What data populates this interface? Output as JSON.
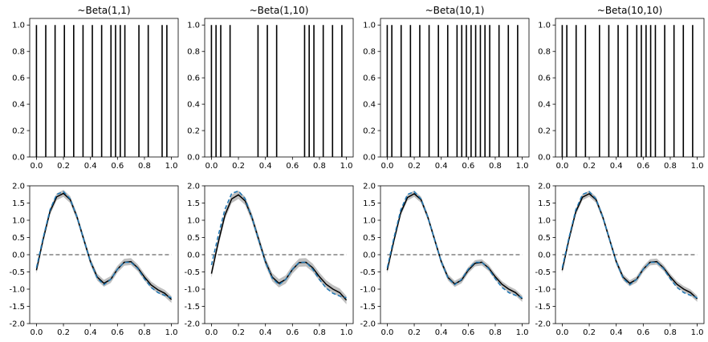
{
  "chart_data": [
    {
      "type": "bar",
      "title": "~Beta(1,1)",
      "x": [
        0.0,
        0.069,
        0.138,
        0.207,
        0.276,
        0.345,
        0.414,
        0.483,
        0.552,
        0.586,
        0.621,
        0.655,
        0.759,
        0.828,
        0.931,
        0.966
      ],
      "values": [
        1,
        1,
        1,
        1,
        1,
        1,
        1,
        1,
        1,
        1,
        1,
        1,
        1,
        1,
        1,
        1
      ],
      "xlim": [
        -0.05,
        1.05
      ],
      "ylim": [
        0,
        1.05
      ],
      "xticks": [
        0.0,
        0.2,
        0.4,
        0.6,
        0.8,
        1.0
      ],
      "yticks": [
        0.0,
        0.2,
        0.4,
        0.6,
        0.8,
        1.0
      ]
    },
    {
      "type": "bar",
      "title": "~Beta(1,10)",
      "x": [
        0.0,
        0.034,
        0.069,
        0.138,
        0.345,
        0.414,
        0.483,
        0.69,
        0.724,
        0.759,
        0.828,
        0.897,
        0.966
      ],
      "values": [
        1,
        1,
        1,
        1,
        1,
        1,
        1,
        1,
        1,
        1,
        1,
        1,
        1
      ],
      "xlim": [
        -0.05,
        1.05
      ],
      "ylim": [
        0,
        1.05
      ],
      "xticks": [
        0.0,
        0.2,
        0.4,
        0.6,
        0.8,
        1.0
      ],
      "yticks": [
        0.0,
        0.2,
        0.4,
        0.6,
        0.8,
        1.0
      ]
    },
    {
      "type": "bar",
      "title": "~Beta(10,1)",
      "x": [
        0.0,
        0.034,
        0.103,
        0.172,
        0.241,
        0.31,
        0.379,
        0.448,
        0.517,
        0.552,
        0.586,
        0.621,
        0.655,
        0.69,
        0.724,
        0.759,
        0.828,
        0.897,
        0.966
      ],
      "values": [
        1,
        1,
        1,
        1,
        1,
        1,
        1,
        1,
        1,
        1,
        1,
        1,
        1,
        1,
        1,
        1,
        1,
        1,
        1
      ],
      "xlim": [
        -0.05,
        1.05
      ],
      "ylim": [
        0,
        1.05
      ],
      "xticks": [
        0.0,
        0.2,
        0.4,
        0.6,
        0.8,
        1.0
      ],
      "yticks": [
        0.0,
        0.2,
        0.4,
        0.6,
        0.8,
        1.0
      ]
    },
    {
      "type": "bar",
      "title": "~Beta(10,10)",
      "x": [
        0.0,
        0.034,
        0.103,
        0.172,
        0.276,
        0.345,
        0.414,
        0.483,
        0.552,
        0.586,
        0.621,
        0.655,
        0.69,
        0.759,
        0.828,
        0.897,
        0.966
      ],
      "values": [
        1,
        1,
        1,
        1,
        1,
        1,
        1,
        1,
        1,
        1,
        1,
        1,
        1,
        1,
        1,
        1,
        1
      ],
      "xlim": [
        -0.05,
        1.05
      ],
      "ylim": [
        0,
        1.05
      ],
      "xticks": [
        0.0,
        0.2,
        0.4,
        0.6,
        0.8,
        1.0
      ],
      "yticks": [
        0.0,
        0.2,
        0.4,
        0.6,
        0.8,
        1.0
      ]
    },
    {
      "type": "line",
      "x": [
        0.0,
        0.05,
        0.1,
        0.15,
        0.2,
        0.25,
        0.3,
        0.35,
        0.4,
        0.45,
        0.5,
        0.55,
        0.6,
        0.65,
        0.7,
        0.75,
        0.8,
        0.85,
        0.9,
        0.95,
        1.0
      ],
      "series": [
        {
          "values": [
            -0.45,
            0.45,
            1.25,
            1.68,
            1.78,
            1.6,
            1.1,
            0.45,
            -0.2,
            -0.65,
            -0.83,
            -0.72,
            -0.42,
            -0.22,
            -0.2,
            -0.38,
            -0.65,
            -0.88,
            -1.02,
            -1.12,
            -1.3
          ]
        },
        {
          "values": [
            -0.38,
            0.5,
            1.3,
            1.75,
            1.83,
            1.62,
            1.1,
            0.45,
            -0.2,
            -0.68,
            -0.87,
            -0.72,
            -0.42,
            -0.22,
            -0.22,
            -0.4,
            -0.7,
            -0.95,
            -1.1,
            -1.18,
            -1.25
          ]
        },
        {
          "values": [
            0,
            0,
            0,
            0,
            0,
            0,
            0,
            0,
            0,
            0,
            0,
            0,
            0,
            0,
            0,
            0,
            0,
            0,
            0,
            0,
            0
          ]
        }
      ],
      "band_width": 0.1,
      "xlim": [
        -0.05,
        1.05
      ],
      "ylim": [
        -2.0,
        2.0
      ],
      "xticks": [
        0.0,
        0.2,
        0.4,
        0.6,
        0.8,
        1.0
      ],
      "yticks": [
        -2.0,
        -1.5,
        -1.0,
        -0.5,
        0.0,
        0.5,
        1.0,
        1.5,
        2.0
      ]
    },
    {
      "type": "line",
      "x": [
        0.0,
        0.05,
        0.1,
        0.15,
        0.2,
        0.25,
        0.3,
        0.35,
        0.4,
        0.45,
        0.5,
        0.55,
        0.6,
        0.65,
        0.7,
        0.75,
        0.8,
        0.85,
        0.9,
        0.95,
        1.0
      ],
      "series": [
        {
          "values": [
            -0.55,
            0.35,
            1.15,
            1.62,
            1.74,
            1.56,
            1.08,
            0.44,
            -0.2,
            -0.65,
            -0.83,
            -0.72,
            -0.43,
            -0.23,
            -0.22,
            -0.38,
            -0.64,
            -0.86,
            -1.0,
            -1.1,
            -1.32
          ]
        },
        {
          "values": [
            -0.3,
            0.55,
            1.32,
            1.78,
            1.85,
            1.62,
            1.08,
            0.42,
            -0.22,
            -0.68,
            -0.87,
            -0.72,
            -0.42,
            -0.22,
            -0.22,
            -0.42,
            -0.72,
            -0.97,
            -1.12,
            -1.2,
            -1.25
          ]
        },
        {
          "values": [
            0,
            0,
            0,
            0,
            0,
            0,
            0,
            0,
            0,
            0,
            0,
            0,
            0,
            0,
            0,
            0,
            0,
            0,
            0,
            0,
            0
          ]
        }
      ],
      "band_width": 0.12,
      "xlim": [
        -0.05,
        1.05
      ],
      "ylim": [
        -2.0,
        2.0
      ],
      "xticks": [
        0.0,
        0.2,
        0.4,
        0.6,
        0.8,
        1.0
      ],
      "yticks": [
        -2.0,
        -1.5,
        -1.0,
        -0.5,
        0.0,
        0.5,
        1.0,
        1.5,
        2.0
      ]
    },
    {
      "type": "line",
      "x": [
        0.0,
        0.05,
        0.1,
        0.15,
        0.2,
        0.25,
        0.3,
        0.35,
        0.4,
        0.45,
        0.5,
        0.55,
        0.6,
        0.65,
        0.7,
        0.75,
        0.8,
        0.85,
        0.9,
        0.95,
        1.0
      ],
      "series": [
        {
          "values": [
            -0.45,
            0.42,
            1.22,
            1.66,
            1.77,
            1.6,
            1.1,
            0.45,
            -0.2,
            -0.66,
            -0.85,
            -0.74,
            -0.45,
            -0.25,
            -0.22,
            -0.38,
            -0.64,
            -0.86,
            -1.0,
            -1.1,
            -1.28
          ]
        },
        {
          "values": [
            -0.38,
            0.5,
            1.3,
            1.75,
            1.83,
            1.62,
            1.1,
            0.45,
            -0.2,
            -0.68,
            -0.87,
            -0.72,
            -0.42,
            -0.22,
            -0.22,
            -0.4,
            -0.7,
            -0.95,
            -1.1,
            -1.18,
            -1.25
          ]
        },
        {
          "values": [
            0,
            0,
            0,
            0,
            0,
            0,
            0,
            0,
            0,
            0,
            0,
            0,
            0,
            0,
            0,
            0,
            0,
            0,
            0,
            0,
            0
          ]
        }
      ],
      "band_width": 0.09,
      "xlim": [
        -0.05,
        1.05
      ],
      "ylim": [
        -2.0,
        2.0
      ],
      "xticks": [
        0.0,
        0.2,
        0.4,
        0.6,
        0.8,
        1.0
      ],
      "yticks": [
        -2.0,
        -1.5,
        -1.0,
        -0.5,
        0.0,
        0.5,
        1.0,
        1.5,
        2.0
      ]
    },
    {
      "type": "line",
      "x": [
        0.0,
        0.05,
        0.1,
        0.15,
        0.2,
        0.25,
        0.3,
        0.35,
        0.4,
        0.45,
        0.5,
        0.55,
        0.6,
        0.65,
        0.7,
        0.75,
        0.8,
        0.85,
        0.9,
        0.95,
        1.0
      ],
      "series": [
        {
          "values": [
            -0.45,
            0.45,
            1.24,
            1.67,
            1.77,
            1.6,
            1.1,
            0.45,
            -0.2,
            -0.65,
            -0.83,
            -0.72,
            -0.42,
            -0.22,
            -0.2,
            -0.38,
            -0.64,
            -0.86,
            -1.0,
            -1.1,
            -1.28
          ]
        },
        {
          "values": [
            -0.38,
            0.5,
            1.3,
            1.75,
            1.83,
            1.62,
            1.1,
            0.45,
            -0.2,
            -0.68,
            -0.87,
            -0.72,
            -0.42,
            -0.22,
            -0.22,
            -0.4,
            -0.7,
            -0.95,
            -1.1,
            -1.18,
            -1.25
          ]
        },
        {
          "values": [
            0,
            0,
            0,
            0,
            0,
            0,
            0,
            0,
            0,
            0,
            0,
            0,
            0,
            0,
            0,
            0,
            0,
            0,
            0,
            0,
            0
          ]
        }
      ],
      "band_width": 0.09,
      "xlim": [
        -0.05,
        1.05
      ],
      "ylim": [
        -2.0,
        2.0
      ],
      "xticks": [
        0.0,
        0.2,
        0.4,
        0.6,
        0.8,
        1.0
      ],
      "yticks": [
        -2.0,
        -1.5,
        -1.0,
        -0.5,
        0.0,
        0.5,
        1.0,
        1.5,
        2.0
      ]
    }
  ],
  "colors": {
    "bar": "#000000",
    "mean_line": "#000000",
    "true_line": "#1f77b4",
    "band": "#bfbfbf",
    "zero_line": "#808080",
    "axis": "#000000"
  }
}
